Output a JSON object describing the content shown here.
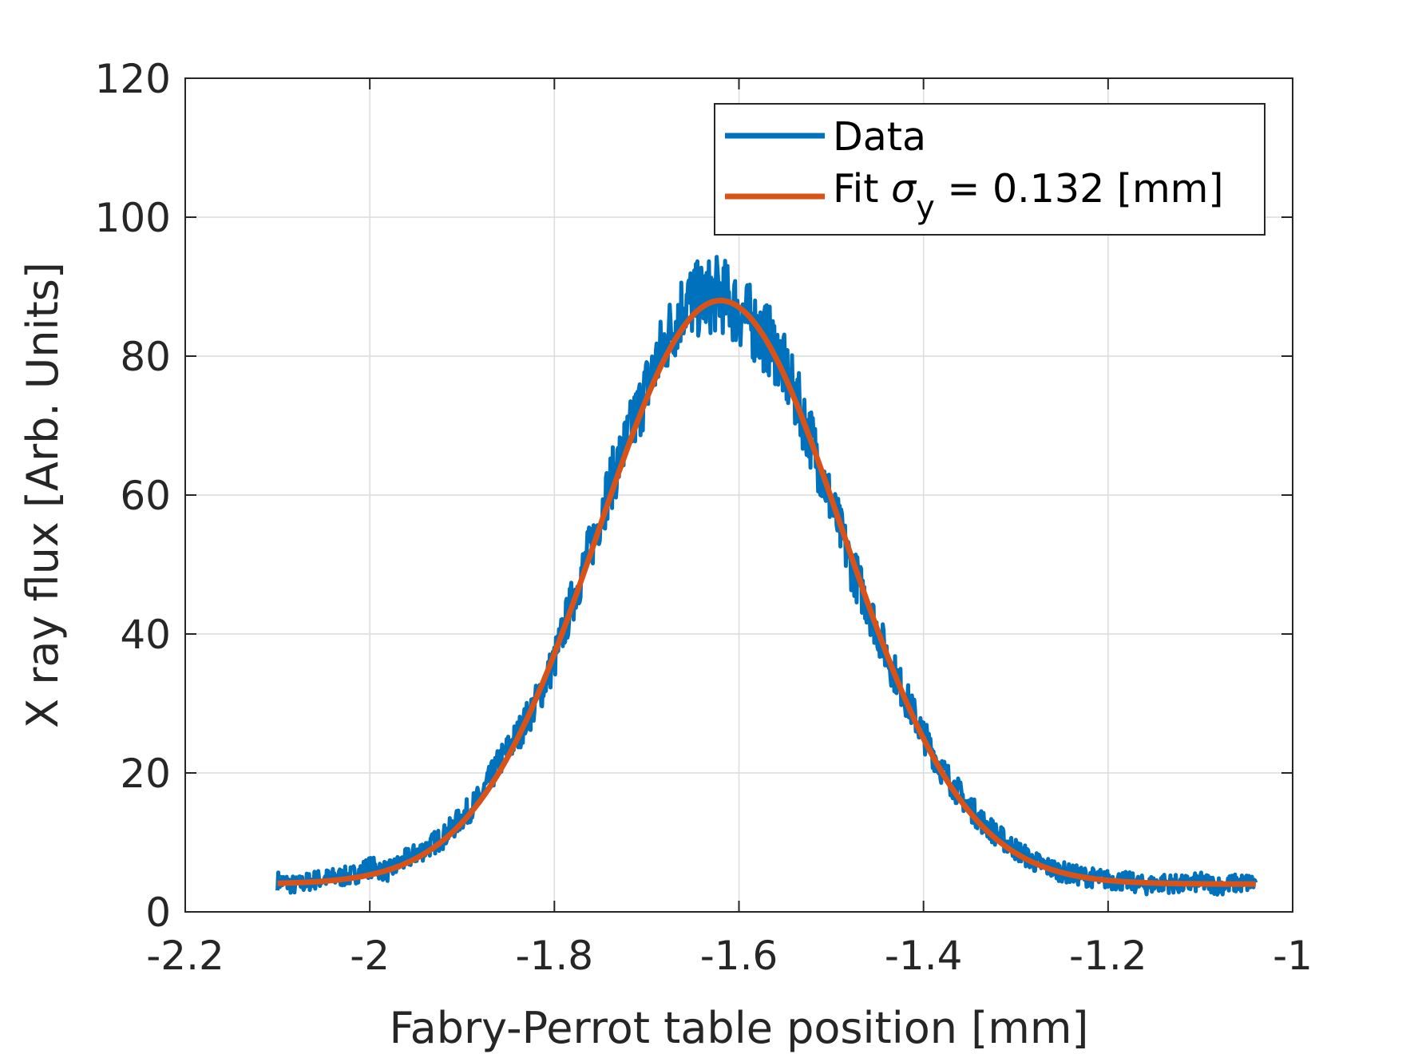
{
  "chart_data": {
    "type": "line",
    "title": "",
    "xlabel": "Fabry-Perrot table position [mm]",
    "ylabel": "X ray flux [Arb. Units]",
    "xlim": [
      -2.2,
      -1
    ],
    "ylim": [
      0,
      120
    ],
    "grid": true,
    "xticks": [
      -2.2,
      -2,
      -1.8,
      -1.6,
      -1.4,
      -1.2,
      -1
    ],
    "xtick_labels": [
      "-2.2",
      "-2",
      "-1.8",
      "-1.6",
      "-1.4",
      "-1.2",
      "-1"
    ],
    "yticks": [
      0,
      20,
      40,
      60,
      80,
      100,
      120
    ],
    "ytick_labels": [
      "0",
      "20",
      "40",
      "60",
      "80",
      "100",
      "120"
    ],
    "legend": {
      "placement": "top-right",
      "entries": [
        {
          "label": "Data",
          "color": "#0072BD"
        },
        {
          "label_prefix": "Fit ",
          "symbol": "σ",
          "subscript": "y",
          "label_suffix": " = 0.132 [mm]",
          "color": "#D95319"
        }
      ]
    },
    "series": [
      {
        "name": "Data",
        "color": "#0072BD",
        "x": [
          -2.1,
          -2.08,
          -2.06,
          -2.04,
          -2.02,
          -2.0,
          -1.98,
          -1.96,
          -1.94,
          -1.92,
          -1.9,
          -1.88,
          -1.86,
          -1.84,
          -1.82,
          -1.8,
          -1.78,
          -1.76,
          -1.74,
          -1.72,
          -1.7,
          -1.68,
          -1.66,
          -1.64,
          -1.62,
          -1.6,
          -1.58,
          -1.56,
          -1.54,
          -1.52,
          -1.5,
          -1.48,
          -1.46,
          -1.44,
          -1.42,
          -1.4,
          -1.38,
          -1.36,
          -1.34,
          -1.32,
          -1.3,
          -1.28,
          -1.26,
          -1.24,
          -1.22,
          -1.2,
          -1.18,
          -1.16,
          -1.14,
          -1.12,
          -1.1,
          -1.08,
          -1.06,
          -1.04
        ],
        "y": [
          4.5,
          3.8,
          4.6,
          4.9,
          5.2,
          6.5,
          5.8,
          7.6,
          9.1,
          10.8,
          13.6,
          16.5,
          21.5,
          25.4,
          30.1,
          36.2,
          45.0,
          52.8,
          61.5,
          68.2,
          75.5,
          82.0,
          87.5,
          88.3,
          89.0,
          86.5,
          84.0,
          81.0,
          74.5,
          67.5,
          58.8,
          50.5,
          44.0,
          37.0,
          31.0,
          25.5,
          20.5,
          16.8,
          13.5,
          11.0,
          9.0,
          7.2,
          6.2,
          5.4,
          5.0,
          4.6,
          4.4,
          3.8,
          4.2,
          3.9,
          4.3,
          3.8,
          4.1,
          4.2
        ]
      },
      {
        "name": "Fit",
        "color": "#D95319",
        "model": "gaussian",
        "center": -1.62,
        "amplitude": 84,
        "sigma": 0.132,
        "offset": 4,
        "x_range": [
          -2.1,
          -1.04
        ]
      }
    ]
  }
}
